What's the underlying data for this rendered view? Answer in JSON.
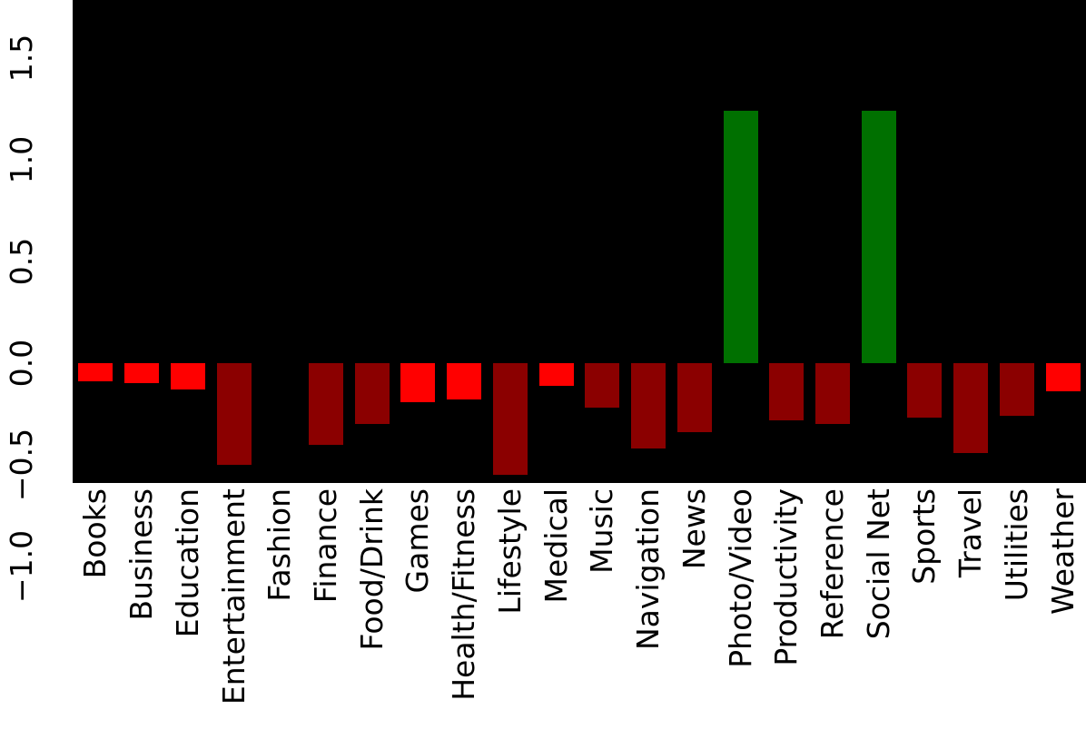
{
  "chart_data": {
    "type": "bar",
    "title": "",
    "xlabel": "",
    "ylabel": "",
    "categories": [
      "Books",
      "Business",
      "Education",
      "Entertainment",
      "Fashion",
      "Finance",
      "Food/Drink",
      "Games",
      "Health/Fitness",
      "Lifestyle",
      "Medical",
      "Music",
      "Navigation",
      "News",
      "Photo/Video",
      "Productivity",
      "Reference",
      "Social Net",
      "Sports",
      "Travel",
      "Utilities",
      "Weather"
    ],
    "values": [
      -0.09,
      -0.1,
      -0.13,
      -0.5,
      0,
      -0.4,
      -0.3,
      -0.19,
      -0.18,
      -0.55,
      -0.11,
      -0.22,
      -0.42,
      -0.34,
      1.24,
      -0.28,
      -0.3,
      1.24,
      -0.27,
      -0.44,
      -0.26,
      -0.14
    ],
    "bar_colors": [
      "#ff0000",
      "#ff0000",
      "#ff0000",
      "#8b0000",
      null,
      "#8b0000",
      "#8b0000",
      "#ff0000",
      "#ff0000",
      "#8b0000",
      "#ff0000",
      "#8b0000",
      "#8b0000",
      "#8b0000",
      "#007000",
      "#8b0000",
      "#8b0000",
      "#007000",
      "#8b0000",
      "#8b0000",
      "#8b0000",
      "#ff0000"
    ],
    "color_legend": {
      "positive": "#007000",
      "negative_large": "#8b0000",
      "negative_small": "#ff0000"
    },
    "y_ticks": [
      -1.0,
      -0.5,
      0.0,
      0.5,
      1.0,
      1.5
    ],
    "y_tick_labels": [
      "−1.0",
      "−0.5",
      "0.0",
      "0.5",
      "1.0",
      "1.5"
    ],
    "ylim": [
      -0.59,
      1.79
    ],
    "x_tick_rotation": 90,
    "y_tick_rotation": 90,
    "grid": false,
    "legend": null,
    "plot_bg": "#000000",
    "fig_bg": "#ffffff"
  }
}
